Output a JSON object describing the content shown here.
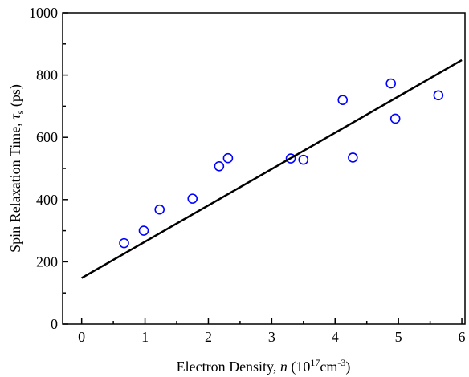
{
  "chart_data": {
    "type": "scatter",
    "title": "",
    "xlabel": {
      "prefix": "Electron Density, ",
      "symbol": "n",
      "open_paren": " (10",
      "exp1": "17",
      "unit": "cm",
      "exp2": "-3",
      "close_paren": ")"
    },
    "ylabel": {
      "prefix": "Spin Relaxation Time, ",
      "symbol": "τ",
      "subscript": "s",
      "suffix": " (ps)"
    },
    "xlim": [
      -0.3,
      6.05
    ],
    "ylim": [
      0,
      1000
    ],
    "xticks": [
      0,
      1,
      2,
      3,
      4,
      5,
      6
    ],
    "xtick_labels": [
      "0",
      "1",
      "2",
      "3",
      "4",
      "5",
      "6"
    ],
    "yticks": [
      0,
      200,
      400,
      600,
      800,
      1000
    ],
    "ytick_labels": [
      "0",
      "200",
      "400",
      "600",
      "800",
      "1000"
    ],
    "grid": false,
    "series": [
      {
        "type": "scatter",
        "marker": "open-circle",
        "color": "#0000ff",
        "x": [
          0.67,
          0.98,
          1.23,
          1.75,
          2.17,
          2.31,
          3.3,
          3.5,
          4.12,
          4.28,
          4.88,
          4.95,
          5.63
        ],
        "y": [
          260,
          300,
          368,
          403,
          507,
          533,
          532,
          528,
          720,
          535,
          773,
          660,
          735
        ]
      },
      {
        "type": "line",
        "color": "#000000",
        "x": [
          0,
          6
        ],
        "y": [
          148,
          848
        ]
      }
    ]
  }
}
